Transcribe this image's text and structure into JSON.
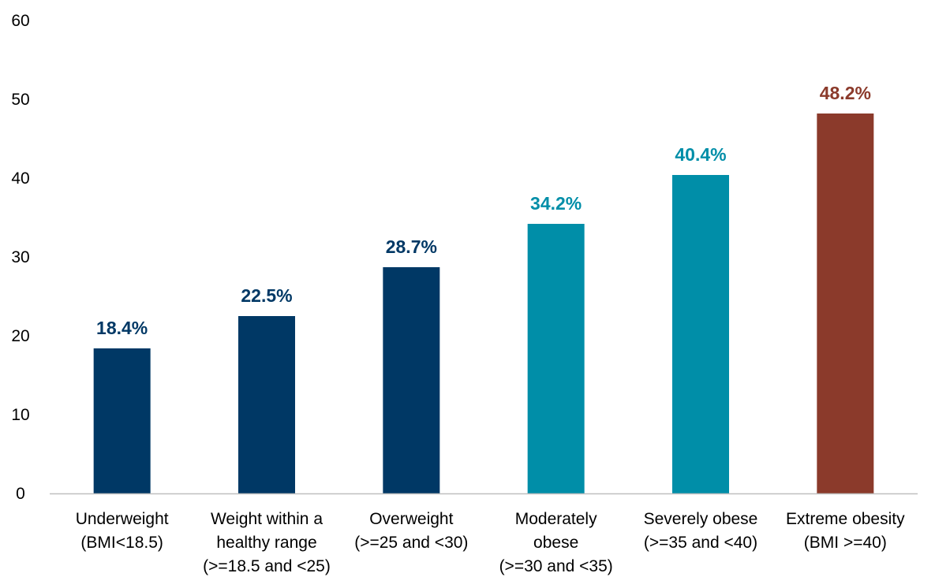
{
  "chart_data": {
    "type": "bar",
    "categories": [
      [
        "Underweight",
        "(BMI<18.5)"
      ],
      [
        "Weight within a",
        "healthy range",
        "(>=18.5 and <25)"
      ],
      [
        "Overweight",
        "(>=25 and <30)"
      ],
      [
        "Moderately",
        "obese",
        "(>=30 and <35)"
      ],
      [
        "Severely obese",
        "(>=35 and <40)"
      ],
      [
        "Extreme obesity",
        "(BMI >=40)"
      ]
    ],
    "values": [
      18.4,
      22.5,
      28.7,
      34.2,
      40.4,
      48.2
    ],
    "data_labels": [
      "18.4%",
      "22.5%",
      "28.7%",
      "34.2%",
      "40.4%",
      "48.2%"
    ],
    "bar_colors": [
      "#003865",
      "#003865",
      "#003865",
      "#008ea8",
      "#008ea8",
      "#8b3a2b"
    ],
    "y_ticks": [
      "0",
      "10",
      "20",
      "30",
      "40",
      "50",
      "60"
    ],
    "ylim": [
      0,
      60
    ],
    "title": "",
    "xlabel": "",
    "ylabel": "",
    "grid": false,
    "legend": "none",
    "axis_color": "#bfbfbf"
  }
}
